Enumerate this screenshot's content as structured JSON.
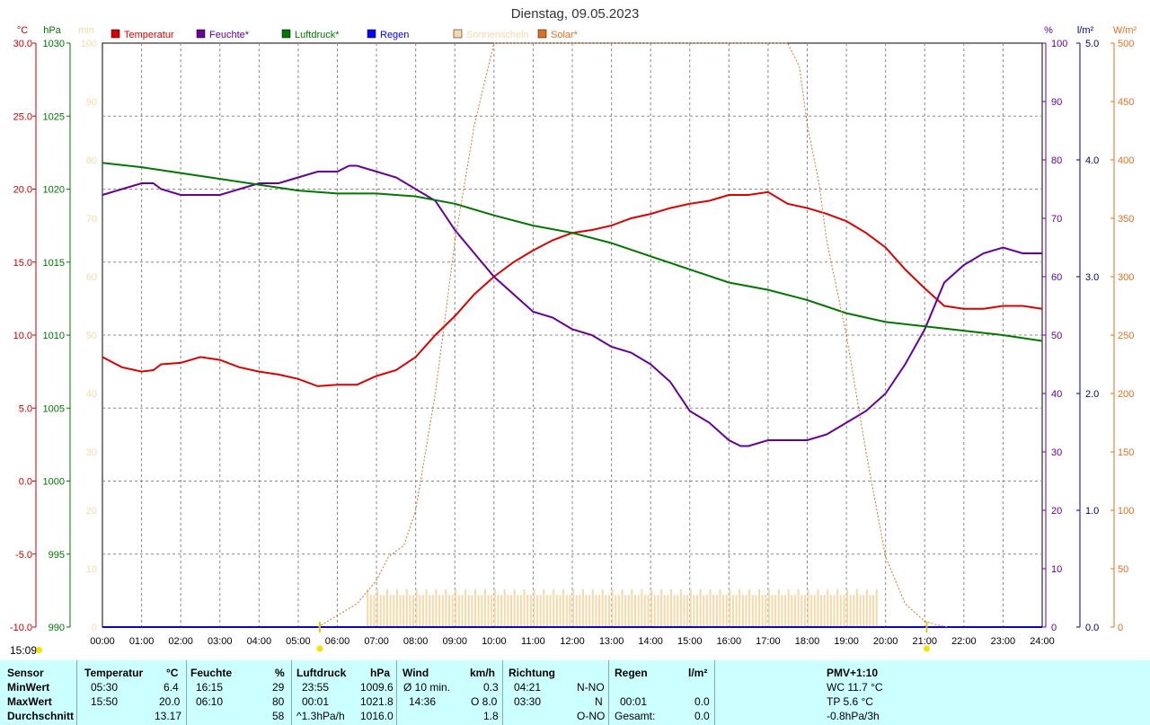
{
  "title": "Dienstag, 09.05.2023",
  "timestamp": "15:09",
  "axes": {
    "left1": {
      "unit": "°C",
      "ticks": [
        "30.0",
        "25.0",
        "20.0",
        "15.0",
        "10.0",
        "5.0",
        "0.0",
        "-5.0",
        "-10.0"
      ],
      "color": "#cc0000"
    },
    "left2": {
      "unit": "hPa",
      "ticks": [
        "1030",
        "1025",
        "1020",
        "1015",
        "1010",
        "1005",
        "1000",
        "995",
        "990"
      ],
      "color": "#007700"
    },
    "left3": {
      "unit": "min",
      "ticks": [
        "100",
        "90",
        "80",
        "70",
        "60",
        "50",
        "40",
        "30",
        "20",
        "10",
        "0"
      ],
      "color": "#f5d9a8"
    },
    "right1": {
      "unit": "%",
      "ticks": [
        "100",
        "90",
        "80",
        "70",
        "60",
        "50",
        "40",
        "30",
        "20",
        "10",
        "0"
      ],
      "color": "#660099"
    },
    "right2": {
      "unit": "l/m²",
      "ticks": [
        "5.0",
        "4.0",
        "3.0",
        "2.0",
        "1.0",
        "0.0"
      ],
      "color": "#000080"
    },
    "right3": {
      "unit": "W/m²",
      "ticks": [
        "500",
        "450",
        "400",
        "350",
        "300",
        "250",
        "200",
        "150",
        "100",
        "50",
        "0"
      ],
      "color": "#e07020"
    }
  },
  "chart_data": {
    "type": "line",
    "title": "Dienstag, 09.05.2023",
    "x_ticks": [
      "00:00",
      "01:00",
      "02:00",
      "03:00",
      "04:00",
      "05:00",
      "06:00",
      "07:00",
      "08:00",
      "09:00",
      "10:00",
      "11:00",
      "12:00",
      "13:00",
      "14:00",
      "15:00",
      "16:00",
      "17:00",
      "18:00",
      "19:00",
      "20:00",
      "21:00",
      "22:00",
      "23:00",
      "24:00"
    ],
    "x_range": [
      0,
      24
    ],
    "grid": true,
    "legend_placement": "top",
    "series": [
      {
        "name": "Temperatur",
        "unit": "°C",
        "color": "#dd0000",
        "ylim": [
          -10,
          30
        ],
        "x": [
          0,
          0.5,
          1,
          1.3,
          1.5,
          2,
          2.5,
          3,
          3.5,
          4,
          4.5,
          5,
          5.5,
          6,
          6.5,
          7,
          7.5,
          8,
          8.5,
          9,
          9.5,
          10,
          10.5,
          11,
          11.5,
          12,
          12.5,
          13,
          13.5,
          14,
          14.5,
          15,
          15.5,
          16,
          16.5,
          17,
          17.5,
          18,
          18.5,
          19,
          19.5,
          20,
          20.5,
          21,
          21.5,
          22,
          22.5,
          23,
          23.5,
          24
        ],
        "y": [
          8.5,
          7.8,
          7.5,
          7.6,
          8.0,
          8.1,
          8.5,
          8.3,
          7.8,
          7.5,
          7.3,
          7.0,
          6.5,
          6.6,
          6.6,
          7.2,
          7.6,
          8.5,
          10.0,
          11.3,
          12.8,
          14.0,
          15.0,
          15.8,
          16.5,
          17.0,
          17.2,
          17.5,
          18.0,
          18.3,
          18.7,
          19.0,
          19.2,
          19.6,
          19.6,
          19.8,
          19.0,
          18.7,
          18.3,
          17.8,
          17.0,
          16.0,
          14.5,
          13.2,
          12.0,
          11.8,
          11.8,
          12.0,
          12.0,
          11.8
        ]
      },
      {
        "name": "Feuchte*",
        "unit": "%",
        "color": "#660099",
        "ylim": [
          0,
          100
        ],
        "x": [
          0,
          0.5,
          1,
          1.3,
          1.5,
          2,
          2.5,
          3,
          3.5,
          4,
          4.5,
          5,
          5.5,
          6,
          6.3,
          6.5,
          7,
          7.5,
          8,
          8.5,
          9,
          9.5,
          10,
          10.5,
          11,
          11.5,
          12,
          12.5,
          13,
          13.5,
          14,
          14.5,
          15,
          15.5,
          16,
          16.3,
          16.5,
          17,
          17.5,
          18,
          18.5,
          19,
          19.5,
          20,
          20.5,
          21,
          21.5,
          22,
          22.5,
          23,
          23.5,
          24
        ],
        "y": [
          74,
          75,
          76,
          76,
          75,
          74,
          74,
          74,
          75,
          76,
          76,
          77,
          78,
          78,
          79,
          79,
          78,
          77,
          75,
          73,
          68,
          64,
          60,
          57,
          54,
          53,
          51,
          50,
          48,
          47,
          45,
          42,
          37,
          35,
          32,
          31,
          31,
          32,
          32,
          32,
          33,
          35,
          37,
          40,
          45,
          51,
          59,
          62,
          64,
          65,
          64,
          64
        ]
      },
      {
        "name": "Luftdruck*",
        "unit": "hPa",
        "color": "#007700",
        "ylim": [
          990,
          1030
        ],
        "x": [
          0,
          1,
          2,
          3,
          4,
          5,
          6,
          7,
          8,
          9,
          10,
          11,
          12,
          13,
          14,
          15,
          16,
          17,
          18,
          19,
          20,
          21,
          22,
          23,
          24
        ],
        "y": [
          1021.8,
          1021.5,
          1021.1,
          1020.7,
          1020.3,
          1019.9,
          1019.7,
          1019.7,
          1019.5,
          1019.0,
          1018.2,
          1017.5,
          1017.0,
          1016.3,
          1015.4,
          1014.5,
          1013.6,
          1013.1,
          1012.4,
          1011.5,
          1010.9,
          1010.6,
          1010.3,
          1010.0,
          1009.6
        ]
      },
      {
        "name": "Regen",
        "unit": "l/m²",
        "color": "#0000ff",
        "ylim": [
          0,
          5
        ],
        "x": [
          0,
          24
        ],
        "y": [
          0.0,
          0.0
        ]
      },
      {
        "name": "Sonnenschein",
        "unit": "min",
        "color": "#f5d9a8",
        "ylim": [
          0,
          100
        ],
        "type": "bar",
        "x_range": [
          6.75,
          19.75
        ],
        "values_approx": 5.5
      },
      {
        "name": "Solar*",
        "unit": "W/m²",
        "color": "#e07020",
        "ylim": [
          0,
          500
        ],
        "x": [
          5.5,
          6,
          6.5,
          7,
          7.3,
          7.7,
          8,
          8.5,
          9,
          9.5,
          10,
          10.3,
          17.5,
          17.8,
          18,
          18.3,
          18.5,
          19,
          19.5,
          20,
          20.5,
          21,
          21.3,
          21.6
        ],
        "y": [
          0,
          10,
          20,
          40,
          60,
          70,
          100,
          200,
          330,
          430,
          500,
          500,
          500,
          480,
          430,
          380,
          330,
          250,
          150,
          60,
          20,
          5,
          2,
          0
        ]
      }
    ]
  },
  "stats": {
    "headers": {
      "sensor": "Sensor",
      "temp": "Temperatur",
      "temp_unit": "°C",
      "hum": "Feuchte",
      "hum_unit": "%",
      "press": "Luftdruck",
      "press_unit": "hPa",
      "wind": "Wind",
      "wind_unit": "km/h",
      "dir": "Richtung",
      "rain": "Regen",
      "rain_unit": "l/m²",
      "pmv": "PMV+1:10"
    },
    "labels": {
      "min": "MinWert",
      "max": "MaxWert",
      "avg": "Durchschnitt"
    },
    "temp": {
      "min_t": "05:30",
      "min_v": "6.4",
      "max_t": "15:50",
      "max_v": "20.0",
      "avg": "13.17"
    },
    "hum": {
      "min_t": "16:15",
      "min_v": "29",
      "max_t": "06:10",
      "max_v": "80",
      "avg": "58"
    },
    "press": {
      "min_t": "23:55",
      "min_v": "1009.6",
      "max_t": "00:01",
      "max_v": "1021.8",
      "trend": "^1.3hPa/h",
      "avg": "1016.0"
    },
    "wind": {
      "r1_l": "Ø 10 min.",
      "r1_v": "0.3",
      "r2_l": "14:36",
      "r2_v": "O 8.0",
      "r3_v": "1.8"
    },
    "dir": {
      "r1_t": "04:21",
      "r1_v": "N-NO",
      "r2_t": "03:30",
      "r2_v": "N",
      "r3_v": "O-NO"
    },
    "rain": {
      "r2_t": "00:01",
      "r2_v": "0.0",
      "r3_l": "Gesamt:",
      "r3_v": "0.0"
    },
    "pmv": {
      "r1": "WC 11.7 °C",
      "r2": "TP 5.6 °C",
      "r3": "-0.8hPa/3h"
    }
  }
}
